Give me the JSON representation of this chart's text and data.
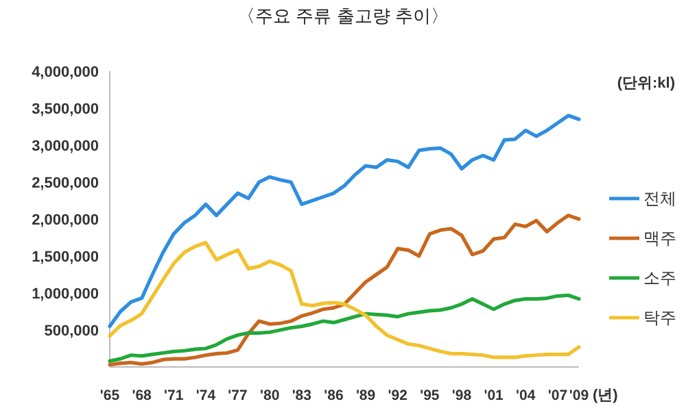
{
  "chart_data": {
    "type": "line",
    "title": "〈주요 주류 출고량 추이〉",
    "xlabel": "(년)",
    "annotations": [
      "(단위:kl)"
    ],
    "x": [
      1965,
      1966,
      1967,
      1968,
      1969,
      1970,
      1971,
      1972,
      1973,
      1974,
      1975,
      1976,
      1977,
      1978,
      1979,
      1980,
      1981,
      1982,
      1983,
      1984,
      1985,
      1986,
      1987,
      1988,
      1989,
      1990,
      1991,
      1992,
      1993,
      1994,
      1995,
      1996,
      1997,
      1998,
      1999,
      2000,
      2001,
      2002,
      2003,
      2004,
      2005,
      2006,
      2007,
      2008,
      2009
    ],
    "xlim": [
      1965,
      2009
    ],
    "xticks": [
      {
        "value": 1965,
        "label": "'65"
      },
      {
        "value": 1968,
        "label": "'68"
      },
      {
        "value": 1971,
        "label": "'71"
      },
      {
        "value": 1974,
        "label": "'74"
      },
      {
        "value": 1977,
        "label": "'77"
      },
      {
        "value": 1980,
        "label": "'80"
      },
      {
        "value": 1983,
        "label": "'83"
      },
      {
        "value": 1986,
        "label": "'86"
      },
      {
        "value": 1989,
        "label": "'89"
      },
      {
        "value": 1992,
        "label": "'92"
      },
      {
        "value": 1995,
        "label": "'95"
      },
      {
        "value": 1998,
        "label": "'98"
      },
      {
        "value": 2001,
        "label": "'01"
      },
      {
        "value": 2004,
        "label": "'04"
      },
      {
        "value": 2007,
        "label": "'07"
      },
      {
        "value": 2009,
        "label": "'09"
      }
    ],
    "ylim": [
      0,
      4000000
    ],
    "yticks": [
      {
        "value": 500000,
        "label": "500,000"
      },
      {
        "value": 1000000,
        "label": "1,000,000"
      },
      {
        "value": 1500000,
        "label": "1,500,000"
      },
      {
        "value": 2000000,
        "label": "2,000,000"
      },
      {
        "value": 2500000,
        "label": "2,500,000"
      },
      {
        "value": 3000000,
        "label": "3,000,000"
      },
      {
        "value": 3500000,
        "label": "3,500,000"
      },
      {
        "value": 4000000,
        "label": "4,000,000"
      }
    ],
    "grid": false,
    "legend": "right",
    "marker": "none",
    "line_style": "solid",
    "series": [
      {
        "name": "전체",
        "color": "#2e8ee0",
        "values": [
          550000,
          750000,
          880000,
          930000,
          1250000,
          1550000,
          1800000,
          1950000,
          2050000,
          2200000,
          2050000,
          2200000,
          2350000,
          2280000,
          2500000,
          2570000,
          2530000,
          2500000,
          2200000,
          2250000,
          2300000,
          2350000,
          2450000,
          2600000,
          2720000,
          2700000,
          2800000,
          2780000,
          2700000,
          2930000,
          2950000,
          2960000,
          2880000,
          2680000,
          2800000,
          2860000,
          2800000,
          3070000,
          3080000,
          3200000,
          3120000,
          3200000,
          3300000,
          3400000,
          3350000
        ]
      },
      {
        "name": "맥주",
        "color": "#c8671e",
        "values": [
          30000,
          50000,
          60000,
          40000,
          60000,
          100000,
          110000,
          110000,
          130000,
          160000,
          180000,
          190000,
          230000,
          450000,
          620000,
          580000,
          590000,
          620000,
          690000,
          730000,
          780000,
          800000,
          850000,
          1000000,
          1150000,
          1250000,
          1350000,
          1600000,
          1580000,
          1500000,
          1800000,
          1850000,
          1870000,
          1780000,
          1520000,
          1570000,
          1730000,
          1750000,
          1930000,
          1900000,
          1980000,
          1830000,
          1950000,
          2050000,
          2000000
        ]
      },
      {
        "name": "소주",
        "color": "#22a83a",
        "values": [
          80000,
          110000,
          160000,
          150000,
          170000,
          190000,
          210000,
          220000,
          240000,
          250000,
          300000,
          380000,
          430000,
          460000,
          460000,
          470000,
          500000,
          530000,
          550000,
          580000,
          620000,
          600000,
          640000,
          680000,
          720000,
          710000,
          700000,
          680000,
          720000,
          740000,
          760000,
          770000,
          800000,
          850000,
          920000,
          850000,
          780000,
          850000,
          900000,
          920000,
          920000,
          930000,
          960000,
          970000,
          920000
        ]
      },
      {
        "name": "탁주",
        "color": "#f2c12e",
        "values": [
          420000,
          560000,
          630000,
          720000,
          950000,
          1180000,
          1400000,
          1550000,
          1630000,
          1680000,
          1450000,
          1520000,
          1580000,
          1330000,
          1360000,
          1430000,
          1380000,
          1300000,
          850000,
          830000,
          860000,
          870000,
          850000,
          780000,
          700000,
          550000,
          430000,
          370000,
          310000,
          290000,
          250000,
          210000,
          180000,
          180000,
          170000,
          160000,
          130000,
          130000,
          130000,
          150000,
          160000,
          170000,
          170000,
          170000,
          270000
        ]
      }
    ]
  }
}
